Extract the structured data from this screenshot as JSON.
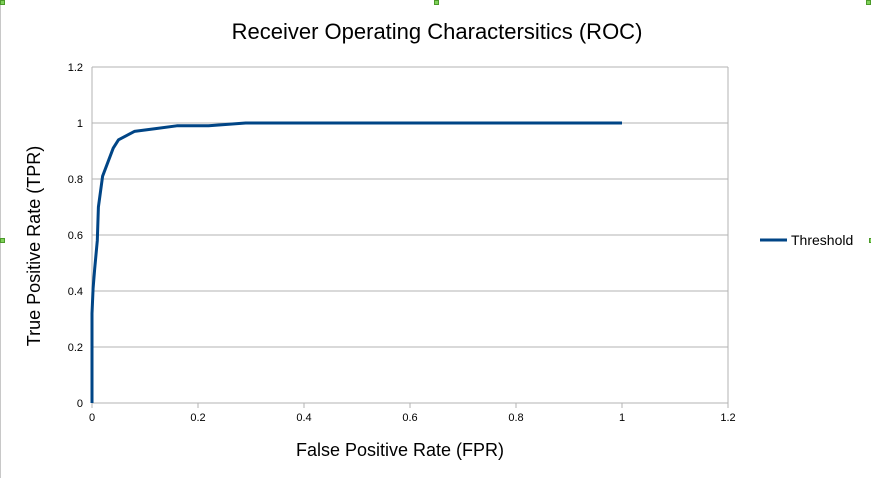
{
  "colors": {
    "series": "#004586",
    "grid": "#b3b3b3",
    "axis": "#b3b3b3",
    "selection_handle": "#7fd15a"
  },
  "chart_data": {
    "type": "line",
    "title": "Receiver Operating Charactersitics (ROC)",
    "xlabel": "False Positive Rate (FPR)",
    "ylabel": "True Positive Rate (TPR)",
    "xlim": [
      0,
      1.2
    ],
    "ylim": [
      0,
      1.2
    ],
    "x_ticks": [
      "0",
      "0.2",
      "0.4",
      "0.6",
      "0.8",
      "1",
      "1.2"
    ],
    "y_ticks": [
      "0",
      "0.2",
      "0.4",
      "0.6",
      "0.8",
      "1",
      "1.2"
    ],
    "grid": "horizontal",
    "legend": {
      "position": "right"
    },
    "series": [
      {
        "name": "Threshold",
        "color": "#004586",
        "x": [
          0,
          0,
          0.002,
          0.005,
          0.01,
          0.012,
          0.02,
          0.03,
          0.04,
          0.05,
          0.08,
          0.12,
          0.16,
          0.22,
          0.29,
          1.0
        ],
        "y": [
          0,
          0.32,
          0.41,
          0.48,
          0.58,
          0.7,
          0.81,
          0.86,
          0.91,
          0.94,
          0.97,
          0.98,
          0.99,
          0.99,
          1.0,
          1.0
        ]
      }
    ]
  }
}
